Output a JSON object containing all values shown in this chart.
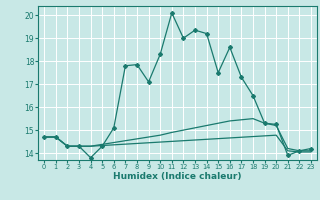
{
  "xlabel": "Humidex (Indice chaleur)",
  "xlim": [
    -0.5,
    23.5
  ],
  "ylim": [
    13.7,
    20.4
  ],
  "yticks": [
    14,
    15,
    16,
    17,
    18,
    19,
    20
  ],
  "xticks": [
    0,
    1,
    2,
    3,
    4,
    5,
    6,
    7,
    8,
    9,
    10,
    11,
    12,
    13,
    14,
    15,
    16,
    17,
    18,
    19,
    20,
    21,
    22,
    23
  ],
  "bg_color": "#c8e8e6",
  "grid_color": "#ffffff",
  "line_color": "#1a7a6e",
  "line1_x": [
    0,
    1,
    2,
    3,
    4,
    5,
    6,
    7,
    8,
    9,
    10,
    11,
    12,
    13,
    14,
    15,
    16,
    17,
    18,
    19,
    20,
    21,
    22,
    23
  ],
  "line1_y": [
    14.7,
    14.7,
    14.3,
    14.3,
    13.8,
    14.3,
    15.1,
    17.8,
    17.85,
    17.1,
    18.3,
    20.1,
    19.0,
    19.35,
    19.2,
    17.5,
    18.6,
    17.3,
    16.5,
    15.3,
    15.25,
    13.9,
    14.1,
    14.2
  ],
  "line2_x": [
    0,
    1,
    2,
    3,
    4,
    5,
    6,
    7,
    8,
    9,
    10,
    11,
    12,
    13,
    14,
    15,
    16,
    17,
    18,
    19,
    20,
    21,
    22,
    23
  ],
  "line2_y": [
    14.7,
    14.7,
    14.3,
    14.3,
    14.3,
    14.38,
    14.46,
    14.54,
    14.62,
    14.7,
    14.78,
    14.9,
    15.0,
    15.1,
    15.2,
    15.3,
    15.4,
    15.45,
    15.5,
    15.3,
    15.2,
    14.2,
    14.1,
    14.1
  ],
  "line3_x": [
    0,
    1,
    2,
    3,
    4,
    5,
    6,
    7,
    8,
    9,
    10,
    11,
    12,
    13,
    14,
    15,
    16,
    17,
    18,
    19,
    20,
    21,
    22,
    23
  ],
  "line3_y": [
    14.7,
    14.7,
    14.3,
    14.3,
    14.3,
    14.33,
    14.36,
    14.39,
    14.42,
    14.45,
    14.48,
    14.51,
    14.54,
    14.57,
    14.6,
    14.63,
    14.66,
    14.69,
    14.72,
    14.75,
    14.78,
    14.1,
    14.05,
    14.05
  ]
}
